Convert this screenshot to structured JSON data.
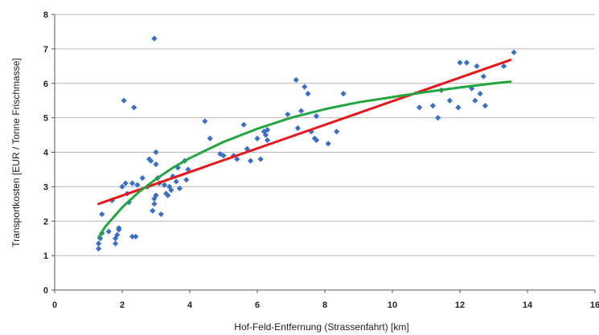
{
  "chart_data": {
    "type": "scatter",
    "xlabel": "Hof-Feld-Entfernung (Strassenfahrt) [km]",
    "ylabel": "Transportkosten [EUR / Tonne Frischmasse]",
    "xlim": [
      0,
      16
    ],
    "ylim": [
      0,
      8
    ],
    "x_ticks": [
      "0",
      "2",
      "4",
      "6",
      "8",
      "10",
      "12",
      "14",
      "16"
    ],
    "y_ticks": [
      "0",
      "1",
      "2",
      "3",
      "4",
      "5",
      "6",
      "7",
      "8"
    ],
    "grid": "horizontal",
    "legend": "none",
    "series": [
      {
        "kind": "points",
        "color": "#3a6fc4",
        "points": [
          [
            1.3,
            1.2
          ],
          [
            1.3,
            1.35
          ],
          [
            1.35,
            1.5
          ],
          [
            1.4,
            1.65
          ],
          [
            1.4,
            2.2
          ],
          [
            1.6,
            1.7
          ],
          [
            1.7,
            2.6
          ],
          [
            1.8,
            1.35
          ],
          [
            1.8,
            1.5
          ],
          [
            1.85,
            1.6
          ],
          [
            1.9,
            1.75
          ],
          [
            1.9,
            1.8
          ],
          [
            2.0,
            3.0
          ],
          [
            2.05,
            5.5
          ],
          [
            2.1,
            3.1
          ],
          [
            2.15,
            2.8
          ],
          [
            2.2,
            2.55
          ],
          [
            2.3,
            3.1
          ],
          [
            2.3,
            1.55
          ],
          [
            2.35,
            5.3
          ],
          [
            2.4,
            1.55
          ],
          [
            2.45,
            3.05
          ],
          [
            2.6,
            3.25
          ],
          [
            2.75,
            3.0
          ],
          [
            2.8,
            3.8
          ],
          [
            2.85,
            3.75
          ],
          [
            2.9,
            2.3
          ],
          [
            2.95,
            2.5
          ],
          [
            2.95,
            2.65
          ],
          [
            2.95,
            7.3
          ],
          [
            3.0,
            2.75
          ],
          [
            3.0,
            3.65
          ],
          [
            3.0,
            4.0
          ],
          [
            3.05,
            3.25
          ],
          [
            3.1,
            3.1
          ],
          [
            3.15,
            2.2
          ],
          [
            3.25,
            3.05
          ],
          [
            3.3,
            2.8
          ],
          [
            3.35,
            2.75
          ],
          [
            3.4,
            3.0
          ],
          [
            3.45,
            2.9
          ],
          [
            3.5,
            3.3
          ],
          [
            3.6,
            3.15
          ],
          [
            3.65,
            3.55
          ],
          [
            3.7,
            2.95
          ],
          [
            3.85,
            3.75
          ],
          [
            3.9,
            3.2
          ],
          [
            3.95,
            3.5
          ],
          [
            4.45,
            4.9
          ],
          [
            4.6,
            4.4
          ],
          [
            4.9,
            3.95
          ],
          [
            5.0,
            3.9
          ],
          [
            5.3,
            3.9
          ],
          [
            5.4,
            3.8
          ],
          [
            5.6,
            4.8
          ],
          [
            5.7,
            4.1
          ],
          [
            5.8,
            3.75
          ],
          [
            6.0,
            4.4
          ],
          [
            6.1,
            3.8
          ],
          [
            6.2,
            4.6
          ],
          [
            6.25,
            4.5
          ],
          [
            6.3,
            4.35
          ],
          [
            6.3,
            4.65
          ],
          [
            6.9,
            5.1
          ],
          [
            7.15,
            6.1
          ],
          [
            7.2,
            4.7
          ],
          [
            7.3,
            5.2
          ],
          [
            7.4,
            5.9
          ],
          [
            7.5,
            5.7
          ],
          [
            7.6,
            4.6
          ],
          [
            7.7,
            4.4
          ],
          [
            7.75,
            4.35
          ],
          [
            7.75,
            5.05
          ],
          [
            8.1,
            4.25
          ],
          [
            8.35,
            4.6
          ],
          [
            8.55,
            5.7
          ],
          [
            10.8,
            5.3
          ],
          [
            11.2,
            5.35
          ],
          [
            11.35,
            5.0
          ],
          [
            11.45,
            5.8
          ],
          [
            11.7,
            5.5
          ],
          [
            11.95,
            5.3
          ],
          [
            12.0,
            6.6
          ],
          [
            12.2,
            6.6
          ],
          [
            12.35,
            5.85
          ],
          [
            12.45,
            5.5
          ],
          [
            12.5,
            6.5
          ],
          [
            12.6,
            5.7
          ],
          [
            12.7,
            6.2
          ],
          [
            12.75,
            5.35
          ],
          [
            13.3,
            6.5
          ],
          [
            13.6,
            6.9
          ]
        ]
      },
      {
        "kind": "linear-trend",
        "color": "#e8161b",
        "x": [
          1.3,
          13.5
        ],
        "y": [
          2.5,
          6.68
        ]
      },
      {
        "kind": "curve-trend",
        "color": "#22a63d",
        "x": [
          1.3,
          1.5,
          2.0,
          2.5,
          3.0,
          3.5,
          4.0,
          5.0,
          6.0,
          7.0,
          8.0,
          9.0,
          10.0,
          11.0,
          12.0,
          13.0,
          13.5
        ],
        "y": [
          1.53,
          1.84,
          2.4,
          2.85,
          3.22,
          3.55,
          3.83,
          4.3,
          4.68,
          5.0,
          5.25,
          5.45,
          5.6,
          5.75,
          5.88,
          6.0,
          6.05
        ]
      }
    ]
  }
}
